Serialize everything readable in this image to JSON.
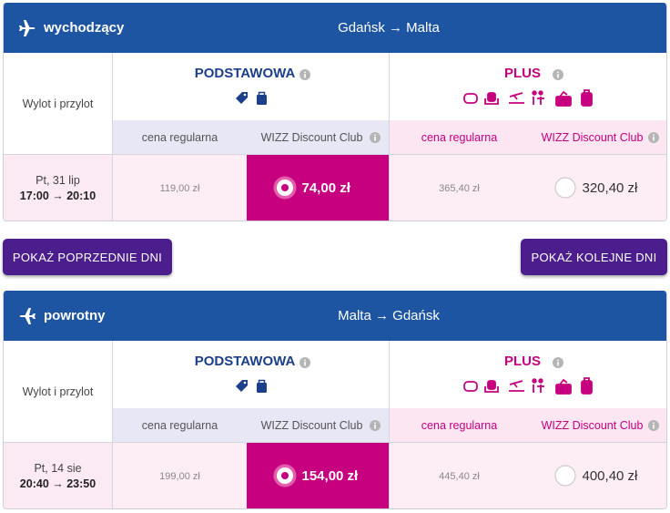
{
  "flights": [
    {
      "direction": "wychodzący",
      "route": "Gdańsk → Malta",
      "time_header": "Wylot i przylot",
      "tiers": [
        {
          "name": "PODSTAWOWA",
          "regular_label": "cena regularna",
          "club_label": "WIZZ Discount Club",
          "regular_price": "119,00 zł",
          "club_price": "74,00 zł"
        },
        {
          "name": "PLUS",
          "regular_label": "cena regularna",
          "club_label": "WIZZ Discount Club",
          "regular_price": "365,40 zł",
          "club_price": "320,40 zł"
        }
      ],
      "date": "Pt, 31 lip",
      "time": "17:00 → 20:10"
    },
    {
      "direction": "powrotny",
      "route": "Malta → Gdańsk",
      "time_header": "Wylot i przylot",
      "tiers": [
        {
          "name": "PODSTAWOWA",
          "regular_label": "cena regularna",
          "club_label": "WIZZ Discount Club",
          "regular_price": "199,00 zł",
          "club_price": "154,00 zł"
        },
        {
          "name": "PLUS",
          "regular_label": "cena regularna",
          "club_label": "WIZZ Discount Club",
          "regular_price": "445,40 zł",
          "club_price": "400,40 zł"
        }
      ],
      "date": "Pt, 14 sie",
      "time": "20:40 → 23:50"
    }
  ],
  "buttons": {
    "previous": "POKAŻ POPRZEDNIE DNI",
    "next": "POKAŻ KOLEJNE DNI"
  }
}
